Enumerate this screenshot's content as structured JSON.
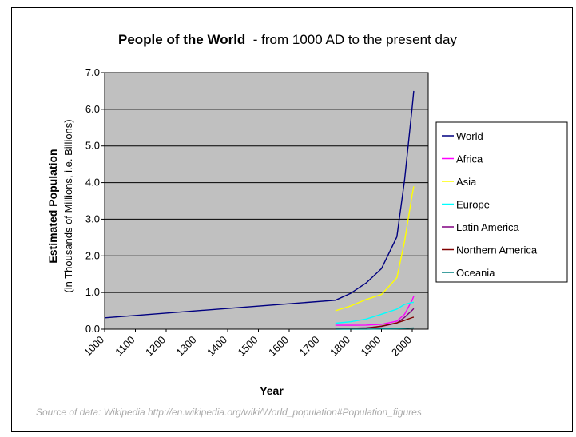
{
  "chart_data": {
    "type": "line",
    "title": "People of the World",
    "subtitle": "- from 1000 AD to the present day",
    "xlabel": "Year",
    "ylabel": "Estimated Population",
    "ylabel_sub": "(in Thousands of Millions, i.e. Billions)",
    "xlim": [
      1000,
      2000
    ],
    "ylim": [
      0,
      7
    ],
    "x_ticks": [
      "1000",
      "1100",
      "1200",
      "1300",
      "1400",
      "1500",
      "1600",
      "1700",
      "1800",
      "1900",
      "2000"
    ],
    "y_ticks": [
      "0.0",
      "1.0",
      "2.0",
      "3.0",
      "4.0",
      "5.0",
      "6.0",
      "7.0"
    ],
    "grid": "horizontal",
    "background": "#c0c0c0",
    "legend_position": "right",
    "source": "Source of data: Wikipedia  http://en.wikipedia.org/wiki/World_population#Population_figures",
    "series": [
      {
        "name": "World",
        "color": "#000080",
        "points": [
          [
            1000,
            0.31
          ],
          [
            1750,
            0.79
          ],
          [
            1800,
            0.98
          ],
          [
            1850,
            1.26
          ],
          [
            1900,
            1.65
          ],
          [
            1950,
            2.52
          ],
          [
            1975,
            4.07
          ],
          [
            2000,
            6.07
          ],
          [
            2005,
            6.5
          ]
        ]
      },
      {
        "name": "Africa",
        "color": "#ff00ff",
        "points": [
          [
            1750,
            0.106
          ],
          [
            1800,
            0.107
          ],
          [
            1850,
            0.111
          ],
          [
            1900,
            0.133
          ],
          [
            1950,
            0.221
          ],
          [
            1975,
            0.406
          ],
          [
            2000,
            0.796
          ],
          [
            2005,
            0.9
          ]
        ]
      },
      {
        "name": "Asia",
        "color": "#ffff00",
        "points": [
          [
            1750,
            0.502
          ],
          [
            1800,
            0.635
          ],
          [
            1850,
            0.809
          ],
          [
            1900,
            0.947
          ],
          [
            1950,
            1.402
          ],
          [
            1975,
            2.393
          ],
          [
            2000,
            3.683
          ],
          [
            2005,
            3.9
          ]
        ]
      },
      {
        "name": "Europe",
        "color": "#00ffff",
        "points": [
          [
            1750,
            0.163
          ],
          [
            1800,
            0.203
          ],
          [
            1850,
            0.276
          ],
          [
            1900,
            0.408
          ],
          [
            1950,
            0.547
          ],
          [
            1975,
            0.676
          ],
          [
            2000,
            0.728
          ],
          [
            2005,
            0.73
          ]
        ]
      },
      {
        "name": "Latin America",
        "color": "#800080",
        "points": [
          [
            1750,
            0.016
          ],
          [
            1800,
            0.024
          ],
          [
            1850,
            0.038
          ],
          [
            1900,
            0.074
          ],
          [
            1950,
            0.167
          ],
          [
            1975,
            0.322
          ],
          [
            2000,
            0.52
          ],
          [
            2005,
            0.56
          ]
        ]
      },
      {
        "name": "Northern America",
        "color": "#800000",
        "points": [
          [
            1750,
            0.002
          ],
          [
            1800,
            0.007
          ],
          [
            1850,
            0.026
          ],
          [
            1900,
            0.082
          ],
          [
            1950,
            0.172
          ],
          [
            1975,
            0.242
          ],
          [
            2000,
            0.316
          ],
          [
            2005,
            0.33
          ]
        ]
      },
      {
        "name": "Oceania",
        "color": "#008080",
        "points": [
          [
            1750,
            0.002
          ],
          [
            1800,
            0.002
          ],
          [
            1850,
            0.002
          ],
          [
            1900,
            0.006
          ],
          [
            1950,
            0.013
          ],
          [
            1975,
            0.021
          ],
          [
            2000,
            0.031
          ],
          [
            2005,
            0.033
          ]
        ]
      }
    ]
  }
}
